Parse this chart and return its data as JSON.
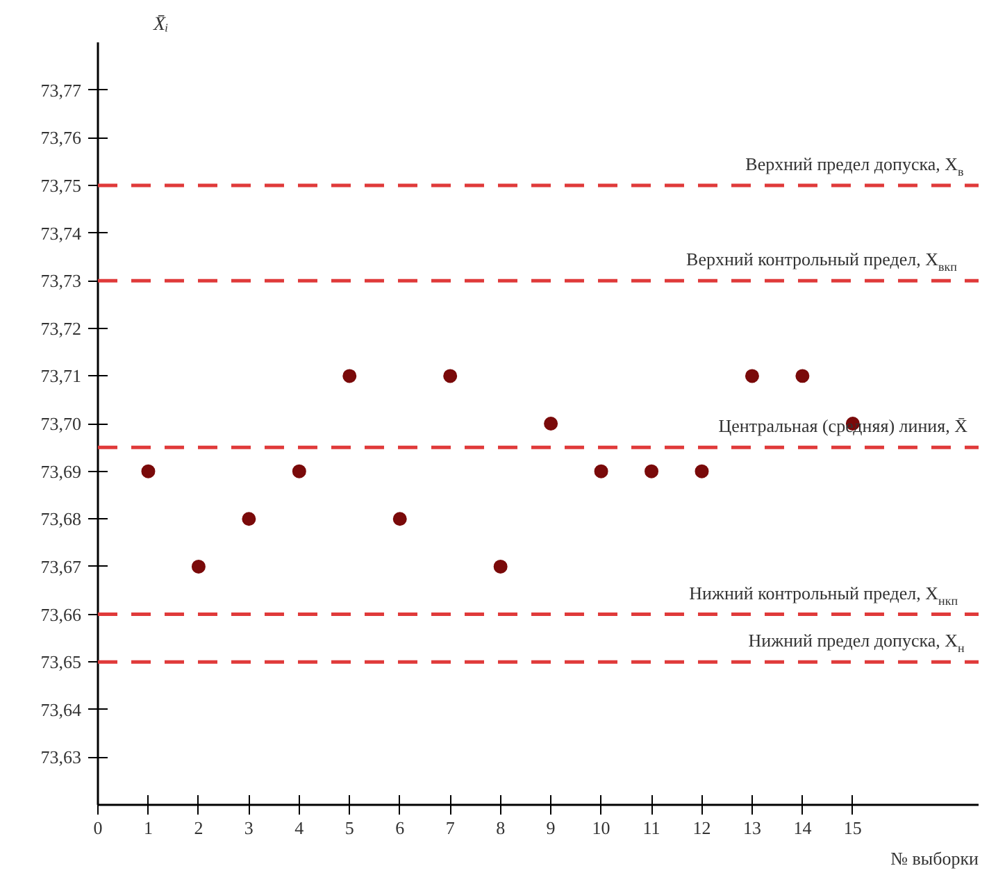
{
  "chart_data": {
    "type": "scatter",
    "xlabel": "№ выборки",
    "ylabel": "X̄ᵢ",
    "x": [
      1,
      2,
      3,
      4,
      5,
      6,
      7,
      8,
      9,
      10,
      11,
      12,
      13,
      14,
      15
    ],
    "values": [
      73.69,
      73.67,
      73.68,
      73.69,
      73.71,
      73.68,
      73.71,
      73.67,
      73.7,
      73.69,
      73.69,
      73.69,
      73.71,
      73.71,
      73.7
    ],
    "color": "#7a0a0a",
    "marker": "circle",
    "grid": false,
    "xlim": [
      0,
      17.5
    ],
    "xticks": [
      0,
      1,
      2,
      3,
      4,
      5,
      6,
      7,
      8,
      9,
      10,
      11,
      12,
      13,
      14,
      15
    ],
    "ylim": [
      73.62,
      73.78
    ],
    "yticks": [
      {
        "value": 73.63,
        "label": "73,63"
      },
      {
        "value": 73.64,
        "label": "73,64"
      },
      {
        "value": 73.65,
        "label": "73,65"
      },
      {
        "value": 73.66,
        "label": "73,66"
      },
      {
        "value": 73.67,
        "label": "73,67"
      },
      {
        "value": 73.68,
        "label": "73,68"
      },
      {
        "value": 73.69,
        "label": "73,69"
      },
      {
        "value": 73.7,
        "label": "73,70"
      },
      {
        "value": 73.71,
        "label": "73,71"
      },
      {
        "value": 73.72,
        "label": "73,72"
      },
      {
        "value": 73.73,
        "label": "73,73"
      },
      {
        "value": 73.74,
        "label": "73,74"
      },
      {
        "value": 73.75,
        "label": "73,75"
      },
      {
        "value": 73.76,
        "label": "73,76"
      },
      {
        "value": 73.77,
        "label": "73,77"
      }
    ],
    "ref_lines": [
      {
        "axis": "y",
        "value": 73.75,
        "label": "Верхний предел допуска, X$_{в}$",
        "color": "#e03a3a",
        "line_style": "dashed"
      },
      {
        "axis": "y",
        "value": 73.73,
        "label": "Верхний контрольный предел, X$_{вкп}$",
        "color": "#e03a3a",
        "line_style": "dashed"
      },
      {
        "axis": "y",
        "value": 73.695,
        "label": "Центральная (средняя) линия, X̄",
        "color": "#e03a3a",
        "line_style": "dashed"
      },
      {
        "axis": "y",
        "value": 73.66,
        "label": "Нижний контрольный предел, X$_{нкп}$",
        "color": "#e03a3a",
        "line_style": "dashed"
      },
      {
        "axis": "y",
        "value": 73.65,
        "label": "Нижний предел допуска, X$_{н}$",
        "color": "#e03a3a",
        "line_style": "dashed"
      }
    ]
  }
}
